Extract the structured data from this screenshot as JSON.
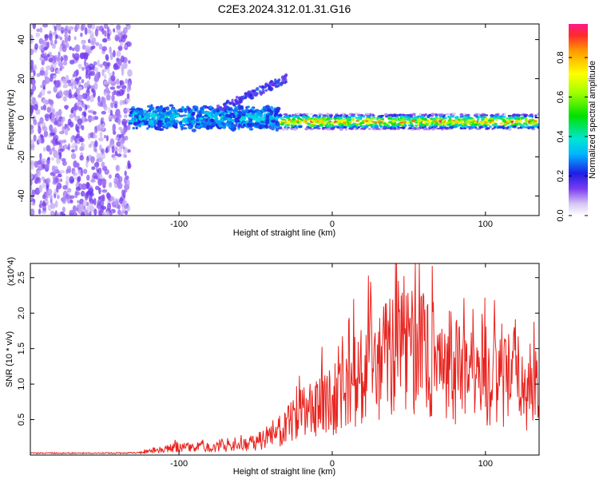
{
  "figure": {
    "title": "C2E3.2024.312.01.31.G16"
  },
  "chart_data": [
    {
      "type": "heatmap",
      "xlabel": "Height of straight line (km)",
      "ylabel": "Frequency (Hz)",
      "xlim": [
        -197,
        135
      ],
      "ylim": [
        -50,
        48
      ],
      "xticks": [
        -100,
        0,
        100
      ],
      "yticks": [
        -40,
        -20,
        0,
        20,
        40
      ],
      "colorbar": {
        "label": "Normalized spectral amplitude",
        "range": [
          0,
          0.97
        ],
        "ticks": [
          0.0,
          0.2,
          0.4,
          0.6,
          0.8
        ]
      },
      "features": [
        {
          "region": "noise",
          "x_range": [
            -197,
            -132
          ],
          "freq_range": [
            -50,
            48
          ],
          "amplitude": 0.1
        },
        {
          "region": "signal_band",
          "x_range": [
            -132,
            -35
          ],
          "freq_center": 0,
          "freq_halfwidth": 5,
          "amplitude_range": [
            0.2,
            0.45
          ]
        },
        {
          "region": "tilted_branch",
          "x_range": [
            -75,
            -30
          ],
          "freq_range": [
            4,
            20
          ],
          "amplitude": 0.2
        },
        {
          "region": "narrow_line",
          "x_range": [
            -35,
            135
          ],
          "freq_center": -2,
          "freq_halfwidth": 2,
          "amplitude_range": [
            0.5,
            0.97
          ]
        }
      ]
    },
    {
      "type": "line",
      "xlabel": "Height of straight line (km)",
      "ylabel": "SNR (10 * v/v)",
      "y_multiplier": "(x10^4)",
      "xlim": [
        -197,
        135
      ],
      "ylim": [
        0,
        2.7
      ],
      "xticks": [
        -100,
        0,
        100
      ],
      "yticks": [
        0.5,
        1.0,
        1.5,
        2.0,
        2.5
      ],
      "series": [
        {
          "color": "#e8231e",
          "x": [
            -197,
            -180,
            -160,
            -140,
            -125,
            -115,
            -100,
            -80,
            -60,
            -50,
            -40,
            -30,
            -20,
            -10,
            0,
            10,
            20,
            30,
            40,
            45,
            50,
            60,
            70,
            80,
            90,
            100,
            110,
            120,
            130,
            135
          ],
          "y": [
            0.03,
            0.03,
            0.03,
            0.03,
            0.04,
            0.1,
            0.15,
            0.15,
            0.18,
            0.25,
            0.35,
            0.55,
            0.8,
            1.0,
            1.1,
            1.3,
            1.6,
            1.75,
            1.95,
            2.3,
            2.1,
            1.9,
            1.8,
            1.7,
            1.6,
            1.55,
            1.4,
            1.5,
            1.3,
            1.2
          ]
        }
      ]
    }
  ]
}
